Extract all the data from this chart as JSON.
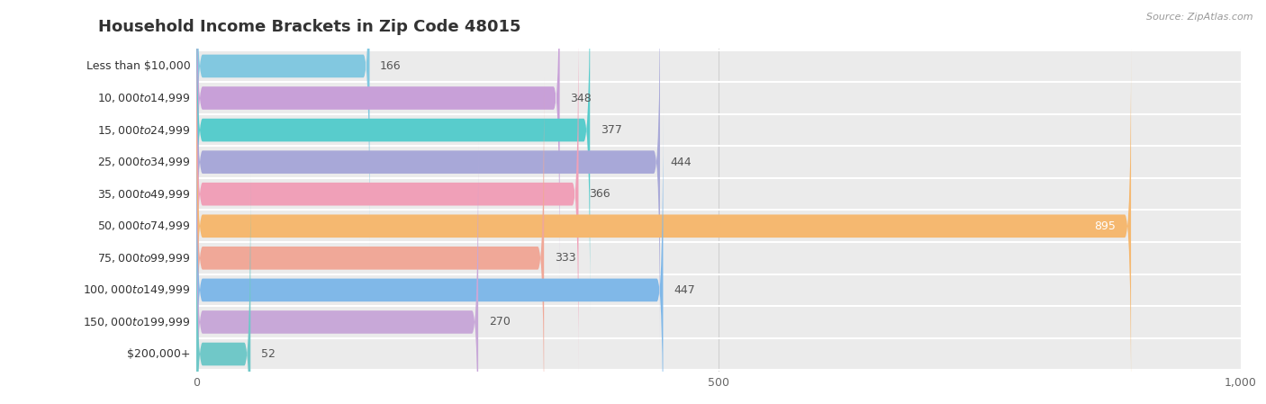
{
  "title": "Household Income Brackets in Zip Code 48015",
  "source": "Source: ZipAtlas.com",
  "categories": [
    "Less than $10,000",
    "$10,000 to $14,999",
    "$15,000 to $24,999",
    "$25,000 to $34,999",
    "$35,000 to $49,999",
    "$50,000 to $74,999",
    "$75,000 to $99,999",
    "$100,000 to $149,999",
    "$150,000 to $199,999",
    "$200,000+"
  ],
  "values": [
    166,
    348,
    377,
    444,
    366,
    895,
    333,
    447,
    270,
    52
  ],
  "bar_colors": [
    "#82C8E0",
    "#C8A0D8",
    "#58CCCC",
    "#A8A8D8",
    "#F0A0B8",
    "#F5B870",
    "#F0A898",
    "#80B8E8",
    "#C8A8D8",
    "#70C8C8"
  ],
  "xlim": [
    0,
    1000
  ],
  "xticks": [
    0,
    500,
    1000
  ],
  "xtick_labels": [
    "0",
    "500",
    "1,000"
  ],
  "bar_background_color": "#ebebeb",
  "title_fontsize": 13,
  "label_fontsize": 9,
  "value_fontsize": 9,
  "bar_height": 0.72,
  "value_label_color": "#555555",
  "value_895_color": "#ffffff",
  "title_color": "#333333",
  "source_color": "#999999",
  "label_color": "#333333",
  "grid_color": "#d0d0d0"
}
